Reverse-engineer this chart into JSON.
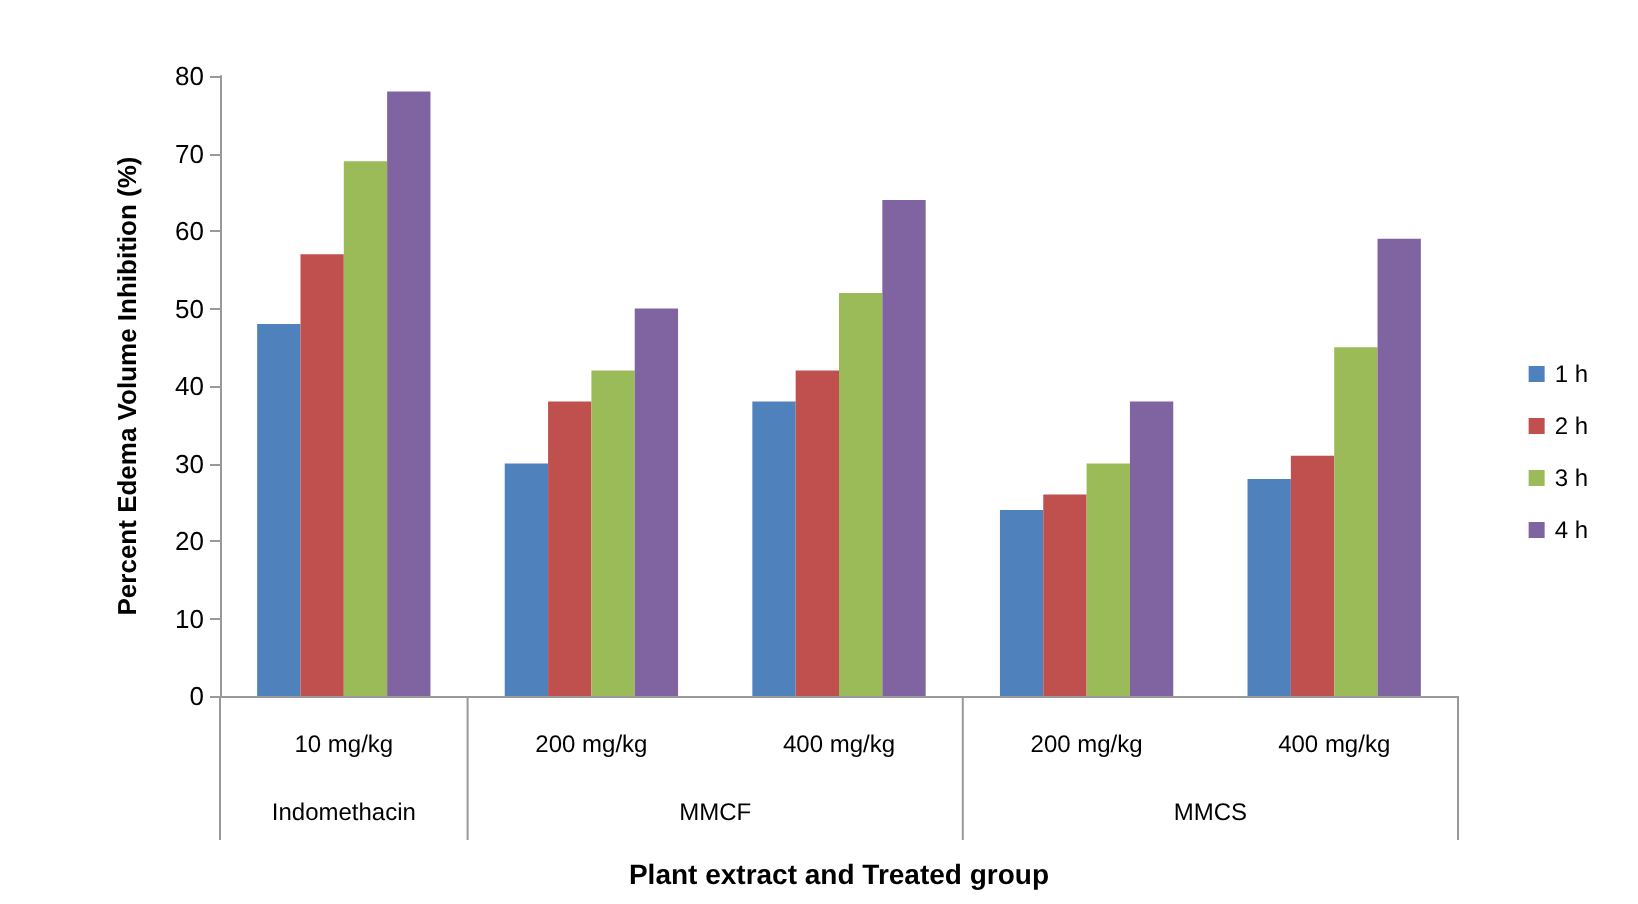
{
  "chart_data": {
    "type": "bar",
    "xlabel": "Plant extract and Treated group",
    "ylabel": "Percent Edema Volume Inhibition (%)",
    "categories": [
      "10 mg/kg",
      "200 mg/kg",
      "400 mg/kg",
      "200 mg/kg",
      "400 mg/kg"
    ],
    "annotations": [
      "Indomethacin",
      "MMCF",
      "MMCS"
    ],
    "series": [
      {
        "name": "1 h",
        "color": "#4f81bd",
        "values": [
          48,
          30,
          38,
          24,
          28
        ]
      },
      {
        "name": "2 h",
        "color": "#c0504d",
        "values": [
          57,
          38,
          42,
          26,
          31
        ]
      },
      {
        "name": "3 h",
        "color": "#9bbb59",
        "values": [
          69,
          42,
          52,
          30,
          45
        ]
      },
      {
        "name": "4 h",
        "color": "#8064a2",
        "values": [
          78,
          50,
          64,
          38,
          59
        ]
      }
    ],
    "ylim": [
      0,
      80
    ],
    "yticks": [
      0,
      10,
      20,
      30,
      40,
      50,
      60,
      70,
      80
    ],
    "grid": false,
    "legend": "right"
  }
}
